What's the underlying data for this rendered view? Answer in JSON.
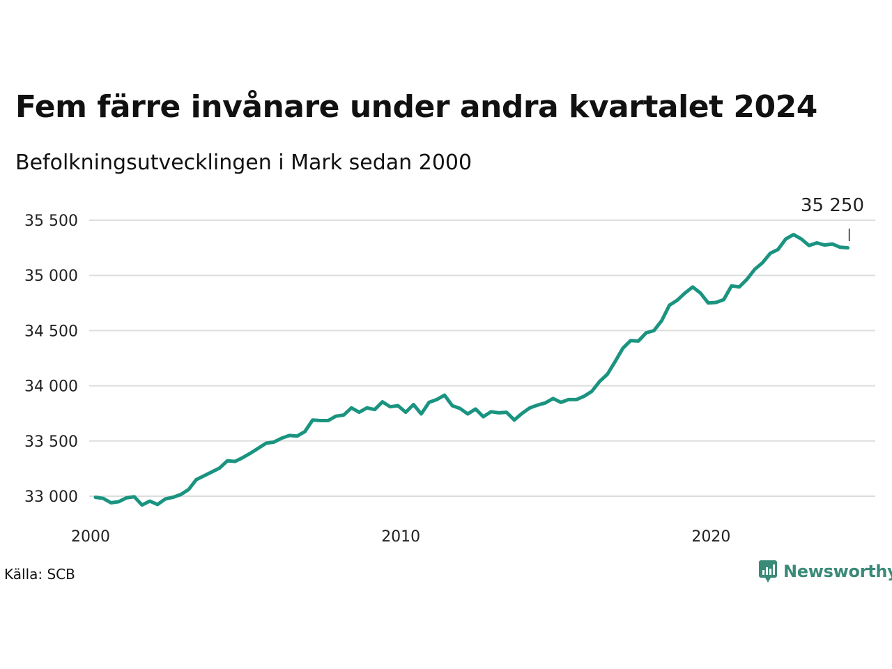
{
  "title": "Fem färre invånare under andra kvartalet 2024",
  "subtitle": "Befolkningsutvecklingen i Mark sedan 2000",
  "source": "Källa: SCB",
  "brand": "Newsworthy",
  "colors": {
    "line": "#1a9480",
    "grid": "#dddddd",
    "brand": "#3a8a78"
  },
  "chart_data": {
    "type": "line",
    "title": "Fem färre invånare under andra kvartalet 2024",
    "subtitle": "Befolkningsutvecklingen i Mark sedan 2000",
    "xlabel": "",
    "ylabel": "",
    "x_ticks": [
      "2000",
      "2010",
      "2020"
    ],
    "y_ticks": [
      "33 000",
      "33 500",
      "34 000",
      "34 500",
      "35 000",
      "35 500"
    ],
    "y_tick_values": [
      33000,
      33500,
      34000,
      34500,
      35000,
      35500
    ],
    "ylim": [
      32700,
      35550
    ],
    "xlim": [
      2000.0,
      2025.0
    ],
    "grid": true,
    "last_value_label": "35 250",
    "x_start": 2000.0,
    "x_step": 0.25,
    "values": [
      32990,
      32980,
      32940,
      32950,
      32985,
      32995,
      32920,
      32955,
      32925,
      32975,
      32990,
      33015,
      33060,
      33150,
      33185,
      33220,
      33255,
      33320,
      33315,
      33350,
      33390,
      33435,
      33480,
      33490,
      33525,
      33550,
      33545,
      33585,
      33690,
      33685,
      33685,
      33725,
      33735,
      33800,
      33760,
      33800,
      33785,
      33855,
      33810,
      33820,
      33760,
      33830,
      33745,
      33850,
      33875,
      33915,
      33820,
      33795,
      33745,
      33790,
      33720,
      33765,
      33755,
      33760,
      33690,
      33750,
      33800,
      33825,
      33845,
      33885,
      33850,
      33875,
      33875,
      33905,
      33950,
      34040,
      34105,
      34220,
      34340,
      34410,
      34405,
      34480,
      34500,
      34590,
      34730,
      34775,
      34840,
      34895,
      34840,
      34750,
      34755,
      34780,
      34905,
      34895,
      34965,
      35055,
      35115,
      35200,
      35235,
      35330,
      35370,
      35330,
      35270,
      35295,
      35275,
      35285,
      35255,
      35250
    ]
  }
}
